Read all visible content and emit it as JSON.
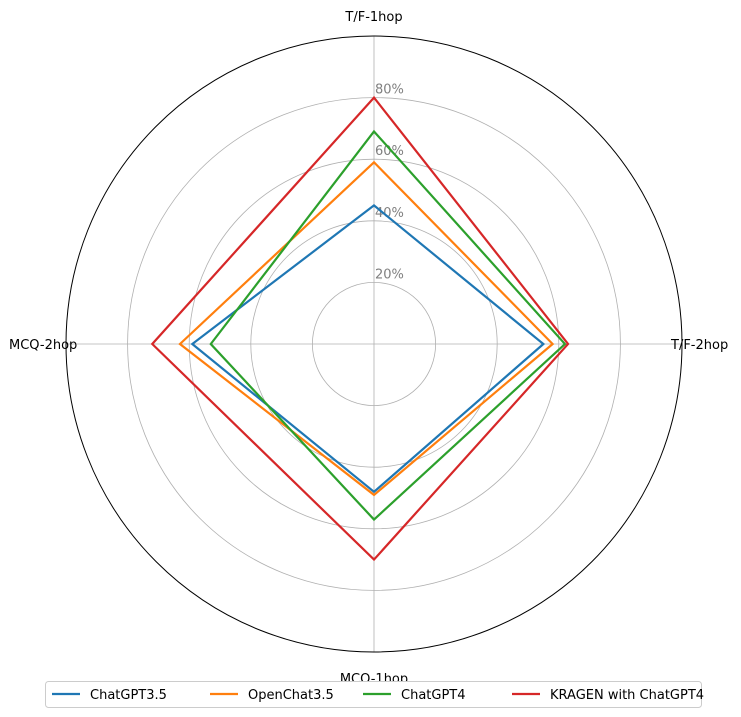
{
  "chart_data": {
    "type": "radar",
    "categories": [
      "T/F-1hop",
      "MCQ-2hop",
      "MCQ-1hop",
      "T/F-2hop"
    ],
    "rlim": [
      0,
      100
    ],
    "rticks": [
      20,
      40,
      60,
      80
    ],
    "rtick_labels": [
      "20%",
      "40%",
      "60%",
      "80%"
    ],
    "grid": true,
    "legend_position": "bottom",
    "series": [
      {
        "name": "ChatGPT3.5",
        "color": "#1f77b4",
        "values": [
          45,
          59,
          48,
          55
        ]
      },
      {
        "name": "OpenChat3.5",
        "color": "#ff7f0e",
        "values": [
          59,
          63,
          49,
          58
        ]
      },
      {
        "name": "ChatGPT4",
        "color": "#2ca02c",
        "values": [
          69,
          53,
          57,
          62
        ]
      },
      {
        "name": "KRAGEN with ChatGPT4",
        "color": "#d62728",
        "values": [
          80,
          72,
          70,
          63
        ]
      }
    ]
  }
}
